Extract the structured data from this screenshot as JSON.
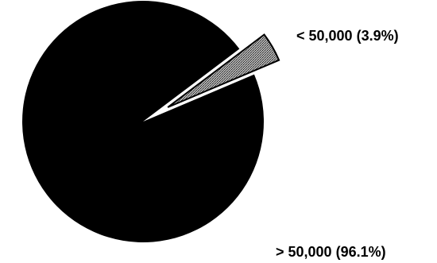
{
  "chart_data": {
    "type": "pie",
    "slices": [
      {
        "label": "> 50,000 (96.1%)",
        "value": 96.1,
        "color": "#000000"
      },
      {
        "label": "< 50,000 (3.9%)",
        "value": 3.9,
        "color": "#8a8a8a",
        "exploded": true
      }
    ],
    "title": "",
    "legend": "none"
  }
}
